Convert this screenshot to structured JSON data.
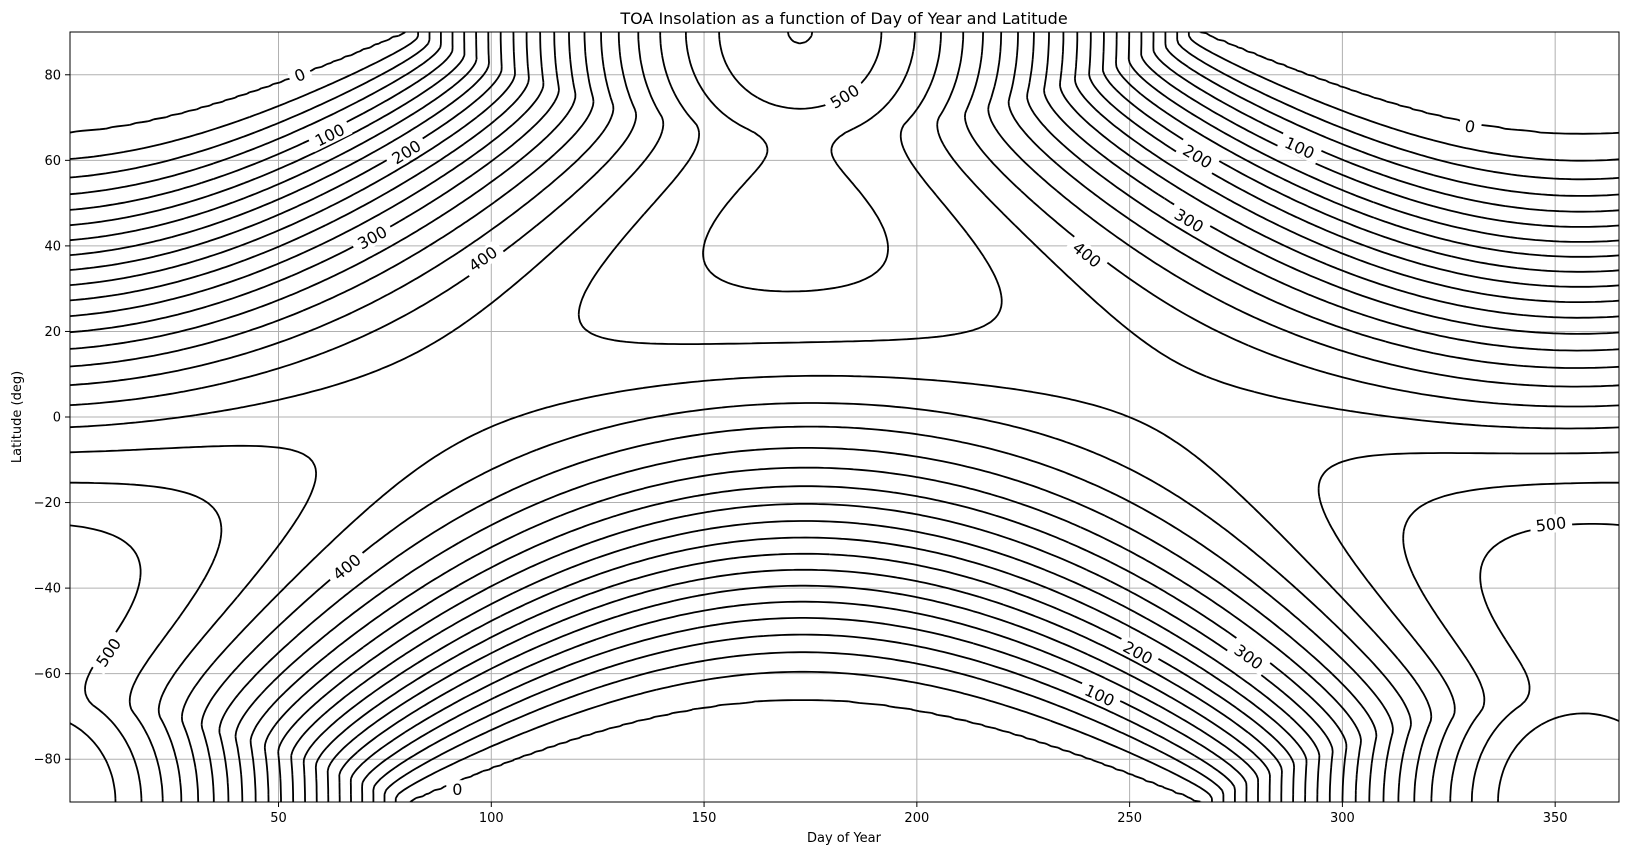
{
  "chart_data": {
    "type": "contour",
    "title": "TOA Insolation as a function of Day of Year and Latitude",
    "xlabel": "Day of Year",
    "ylabel": "Latitude (deg)",
    "xlim": [
      1,
      365
    ],
    "ylim": [
      -90,
      90
    ],
    "xticks": [
      50,
      100,
      150,
      200,
      250,
      300,
      350
    ],
    "yticks": [
      -80,
      -60,
      -40,
      -20,
      0,
      20,
      40,
      60,
      80
    ],
    "grid": true,
    "contour_interval": 25,
    "contour_levels": [
      0,
      25,
      50,
      75,
      100,
      125,
      150,
      175,
      200,
      225,
      250,
      275,
      300,
      325,
      350,
      375,
      400,
      425,
      450,
      475,
      500,
      525
    ],
    "line_color": "#000000",
    "contour_labels": [
      {
        "text": "0",
        "day": 55,
        "lat": 80
      },
      {
        "text": "100",
        "day": 62,
        "lat": 66
      },
      {
        "text": "200",
        "day": 80,
        "lat": 62
      },
      {
        "text": "300",
        "day": 72,
        "lat": 42
      },
      {
        "text": "400",
        "day": 98,
        "lat": 37
      },
      {
        "text": "500",
        "day": 183,
        "lat": 75
      },
      {
        "text": "0",
        "day": 330,
        "lat": 68
      },
      {
        "text": "100",
        "day": 290,
        "lat": 63
      },
      {
        "text": "200",
        "day": 266,
        "lat": 61
      },
      {
        "text": "300",
        "day": 264,
        "lat": 46
      },
      {
        "text": "400",
        "day": 240,
        "lat": 38
      },
      {
        "text": "500",
        "day": 349,
        "lat": -25
      },
      {
        "text": "500",
        "day": 10,
        "lat": -55
      },
      {
        "text": "400",
        "day": 66,
        "lat": -35
      },
      {
        "text": "200",
        "day": 252,
        "lat": -55
      },
      {
        "text": "300",
        "day": 278,
        "lat": -56
      },
      {
        "text": "100",
        "day": 243,
        "lat": -65
      },
      {
        "text": "0",
        "day": 92,
        "lat": -87
      }
    ]
  }
}
